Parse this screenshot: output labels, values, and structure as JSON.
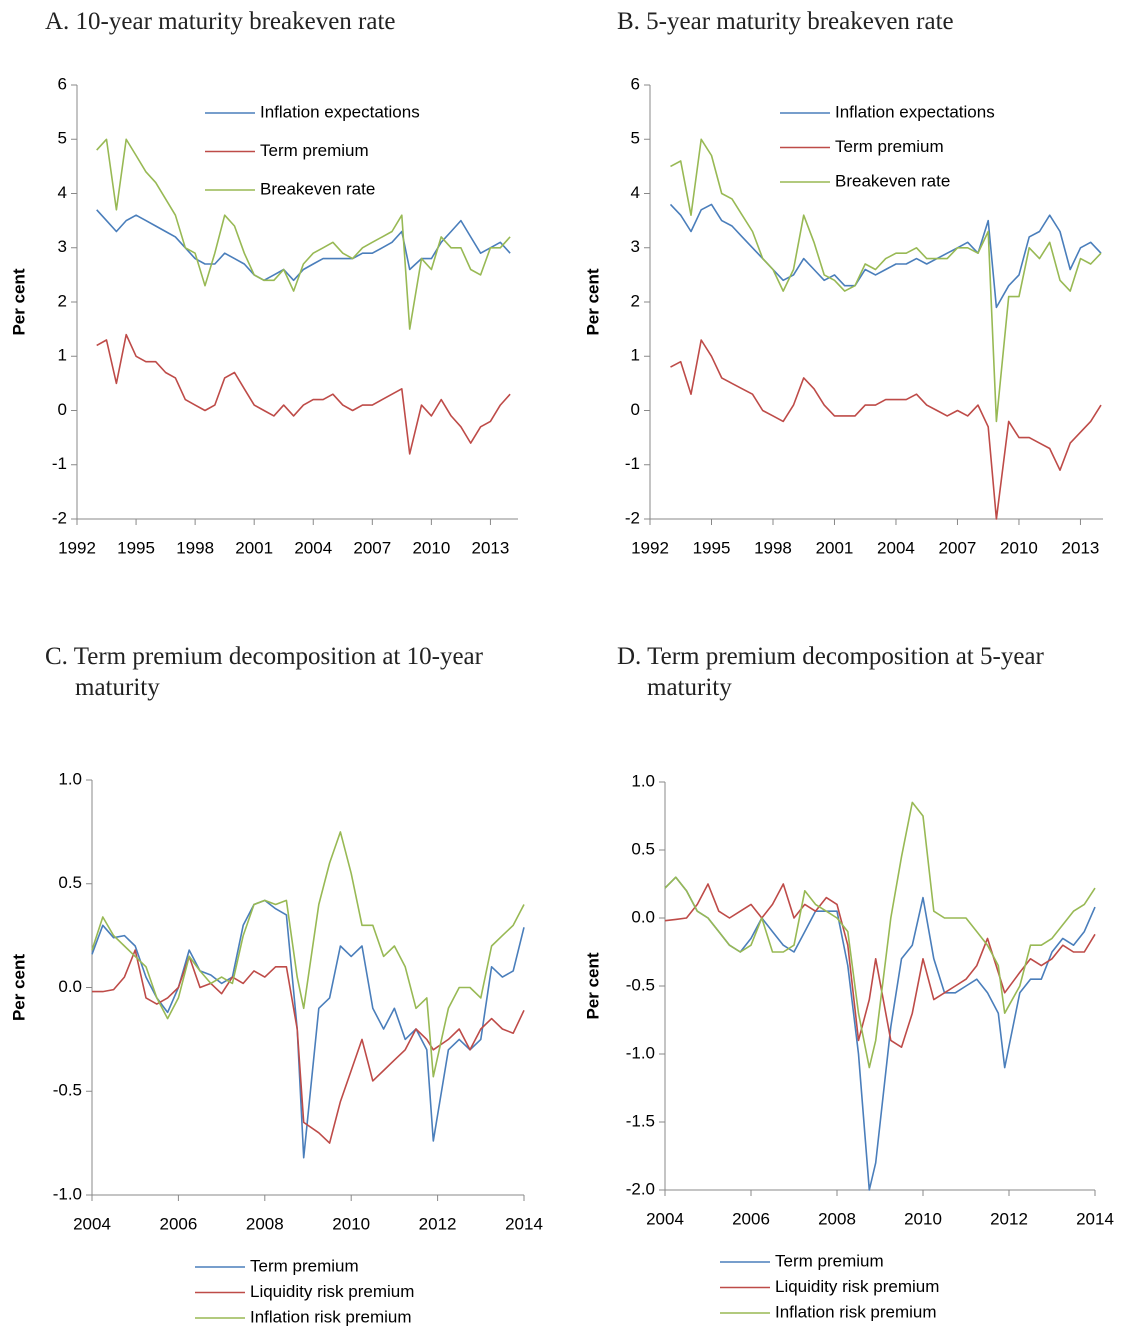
{
  "chart_data": [
    {
      "type": "line",
      "title": "A.  10-year maturity breakeven rate",
      "ylabel": "Per cent",
      "legend": "upper center",
      "x": [
        1993,
        1993.5,
        1994,
        1994.5,
        1995,
        1995.5,
        1996,
        1996.5,
        1997,
        1997.5,
        1998,
        1998.5,
        1999,
        1999.5,
        2000,
        2000.5,
        2001,
        2001.5,
        2002,
        2002.5,
        2003,
        2003.5,
        2004,
        2004.5,
        2005,
        2005.5,
        2006,
        2006.5,
        2007,
        2007.5,
        2008,
        2008.5,
        2008.9,
        2009.5,
        2010,
        2010.5,
        2011,
        2011.5,
        2012,
        2012.5,
        2013,
        2013.5,
        2014
      ],
      "xlim": [
        1992,
        2014.4
      ],
      "xticks": [
        1992,
        1995,
        1998,
        2001,
        2004,
        2007,
        2010,
        2013
      ],
      "ylim": [
        -2,
        6
      ],
      "yticks": [
        -2,
        -1,
        0,
        1,
        2,
        3,
        4,
        5,
        6
      ],
      "series": [
        {
          "name": "Inflation expectations",
          "color": "#4a7ebb",
          "values": [
            3.7,
            3.5,
            3.3,
            3.5,
            3.6,
            3.5,
            3.4,
            3.3,
            3.2,
            3.0,
            2.8,
            2.7,
            2.7,
            2.9,
            2.8,
            2.7,
            2.5,
            2.4,
            2.5,
            2.6,
            2.4,
            2.6,
            2.7,
            2.8,
            2.8,
            2.8,
            2.8,
            2.9,
            2.9,
            3.0,
            3.1,
            3.3,
            2.6,
            2.8,
            2.8,
            3.1,
            3.3,
            3.5,
            3.2,
            2.9,
            3.0,
            3.1,
            2.9
          ]
        },
        {
          "name": "Term premium",
          "color": "#be4b48",
          "values": [
            1.2,
            1.3,
            0.5,
            1.4,
            1.0,
            0.9,
            0.9,
            0.7,
            0.6,
            0.2,
            0.1,
            0.0,
            0.1,
            0.6,
            0.7,
            0.4,
            0.1,
            0.0,
            -0.1,
            0.1,
            -0.1,
            0.1,
            0.2,
            0.2,
            0.3,
            0.1,
            0.0,
            0.1,
            0.1,
            0.2,
            0.3,
            0.4,
            -0.8,
            0.1,
            -0.1,
            0.2,
            -0.1,
            -0.3,
            -0.6,
            -0.3,
            -0.2,
            0.1,
            0.3
          ]
        },
        {
          "name": "Breakeven rate",
          "color": "#98b954",
          "values": [
            4.8,
            5.0,
            3.7,
            5.0,
            4.7,
            4.4,
            4.2,
            3.9,
            3.6,
            3.0,
            2.9,
            2.3,
            2.9,
            3.6,
            3.4,
            2.9,
            2.5,
            2.4,
            2.4,
            2.6,
            2.2,
            2.7,
            2.9,
            3.0,
            3.1,
            2.9,
            2.8,
            3.0,
            3.1,
            3.2,
            3.3,
            3.6,
            1.5,
            2.8,
            2.6,
            3.2,
            3.0,
            3.0,
            2.6,
            2.5,
            3.0,
            3.0,
            3.2
          ]
        }
      ]
    },
    {
      "type": "line",
      "title": "B.  5-year maturity breakeven rate",
      "ylabel": "Per cent",
      "legend": "upper center",
      "x": [
        1993,
        1993.5,
        1994,
        1994.5,
        1995,
        1995.5,
        1996,
        1996.5,
        1997,
        1997.5,
        1998,
        1998.5,
        1999,
        1999.5,
        2000,
        2000.5,
        2001,
        2001.5,
        2002,
        2002.5,
        2003,
        2003.5,
        2004,
        2004.5,
        2005,
        2005.5,
        2006,
        2006.5,
        2007,
        2007.5,
        2008,
        2008.5,
        2008.9,
        2009.5,
        2010,
        2010.5,
        2011,
        2011.5,
        2012,
        2012.5,
        2013,
        2013.5,
        2014
      ],
      "xlim": [
        1992,
        2014.1
      ],
      "xticks": [
        1992,
        1995,
        1998,
        2001,
        2004,
        2007,
        2010,
        2013
      ],
      "ylim": [
        -2,
        6
      ],
      "yticks": [
        -2,
        -1,
        0,
        1,
        2,
        3,
        4,
        5,
        6
      ],
      "series": [
        {
          "name": "Inflation expectations",
          "color": "#4a7ebb",
          "values": [
            3.8,
            3.6,
            3.3,
            3.7,
            3.8,
            3.5,
            3.4,
            3.2,
            3.0,
            2.8,
            2.6,
            2.4,
            2.5,
            2.8,
            2.6,
            2.4,
            2.5,
            2.3,
            2.3,
            2.6,
            2.5,
            2.6,
            2.7,
            2.7,
            2.8,
            2.7,
            2.8,
            2.9,
            3.0,
            3.1,
            2.9,
            3.5,
            1.9,
            2.3,
            2.5,
            3.2,
            3.3,
            3.6,
            3.3,
            2.6,
            3.0,
            3.1,
            2.9
          ]
        },
        {
          "name": "Term premium",
          "color": "#be4b48",
          "values": [
            0.8,
            0.9,
            0.3,
            1.3,
            1.0,
            0.6,
            0.5,
            0.4,
            0.3,
            0.0,
            -0.1,
            -0.2,
            0.1,
            0.6,
            0.4,
            0.1,
            -0.1,
            -0.1,
            -0.1,
            0.1,
            0.1,
            0.2,
            0.2,
            0.2,
            0.3,
            0.1,
            0.0,
            -0.1,
            0.0,
            -0.1,
            0.1,
            -0.3,
            -2.0,
            -0.2,
            -0.5,
            -0.5,
            -0.6,
            -0.7,
            -1.1,
            -0.6,
            -0.4,
            -0.2,
            0.1
          ]
        },
        {
          "name": "Breakeven rate",
          "color": "#98b954",
          "values": [
            4.5,
            4.6,
            3.6,
            5.0,
            4.7,
            4.0,
            3.9,
            3.6,
            3.3,
            2.8,
            2.6,
            2.2,
            2.6,
            3.6,
            3.1,
            2.5,
            2.4,
            2.2,
            2.3,
            2.7,
            2.6,
            2.8,
            2.9,
            2.9,
            3.0,
            2.8,
            2.8,
            2.8,
            3.0,
            3.0,
            2.9,
            3.3,
            -0.2,
            2.1,
            2.1,
            3.0,
            2.8,
            3.1,
            2.4,
            2.2,
            2.8,
            2.7,
            2.9
          ]
        }
      ]
    },
    {
      "type": "line",
      "title": "C.  Term premium decomposition at 10-year maturity",
      "ylabel": "Per cent",
      "legend": "below",
      "x": [
        2004,
        2004.25,
        2004.5,
        2004.75,
        2005,
        2005.25,
        2005.5,
        2005.75,
        2006,
        2006.25,
        2006.5,
        2006.75,
        2007,
        2007.25,
        2007.5,
        2007.75,
        2008,
        2008.25,
        2008.5,
        2008.75,
        2008.9,
        2009.25,
        2009.5,
        2009.75,
        2010,
        2010.25,
        2010.5,
        2010.75,
        2011,
        2011.25,
        2011.5,
        2011.75,
        2011.9,
        2012.25,
        2012.5,
        2012.75,
        2013,
        2013.25,
        2013.5,
        2013.75,
        2014
      ],
      "xlim": [
        2004,
        2014
      ],
      "xticks": [
        2004,
        2006,
        2008,
        2010,
        2012,
        2014
      ],
      "ylim": [
        -1,
        1
      ],
      "yticks": [
        {
          "value": -1,
          "label": "-1.0"
        },
        {
          "value": -0.5,
          "label": "-0.5"
        },
        {
          "value": 0,
          "label": "0.0"
        },
        {
          "value": 0.5,
          "label": "0.5"
        },
        {
          "value": 1,
          "label": "1.0"
        }
      ],
      "series": [
        {
          "name": "Term premium",
          "color": "#4a7ebb",
          "values": [
            0.16,
            0.3,
            0.24,
            0.25,
            0.2,
            0.05,
            -0.05,
            -0.12,
            0.0,
            0.18,
            0.08,
            0.06,
            0.02,
            0.05,
            0.3,
            0.4,
            0.42,
            0.38,
            0.35,
            -0.2,
            -0.82,
            -0.1,
            -0.05,
            0.2,
            0.15,
            0.2,
            -0.1,
            -0.2,
            -0.1,
            -0.25,
            -0.2,
            -0.3,
            -0.74,
            -0.3,
            -0.25,
            -0.3,
            -0.25,
            0.1,
            0.05,
            0.08,
            0.29
          ]
        },
        {
          "name": "Liquidity risk premium",
          "color": "#be4b48",
          "values": [
            -0.02,
            -0.02,
            -0.01,
            0.05,
            0.18,
            -0.05,
            -0.08,
            -0.05,
            0.0,
            0.15,
            0.0,
            0.02,
            -0.03,
            0.05,
            0.02,
            0.08,
            0.05,
            0.1,
            0.1,
            -0.2,
            -0.65,
            -0.7,
            -0.75,
            -0.55,
            -0.4,
            -0.25,
            -0.45,
            -0.4,
            -0.35,
            -0.3,
            -0.2,
            -0.25,
            -0.3,
            -0.25,
            -0.2,
            -0.3,
            -0.2,
            -0.15,
            -0.2,
            -0.22,
            -0.11
          ]
        },
        {
          "name": "Inflation risk premium",
          "color": "#98b954",
          "values": [
            0.18,
            0.34,
            0.25,
            0.2,
            0.15,
            0.1,
            -0.05,
            -0.15,
            -0.05,
            0.15,
            0.08,
            0.02,
            0.05,
            0.02,
            0.25,
            0.4,
            0.42,
            0.4,
            0.42,
            0.05,
            -0.1,
            0.4,
            0.6,
            0.75,
            0.55,
            0.3,
            0.3,
            0.15,
            0.2,
            0.1,
            -0.1,
            -0.05,
            -0.43,
            -0.1,
            0.0,
            0.0,
            -0.05,
            0.2,
            0.25,
            0.3,
            0.4
          ]
        }
      ]
    },
    {
      "type": "line",
      "title": "D.  Term premium decomposition at 5-year maturity",
      "ylabel": "Per cent",
      "legend": "below",
      "x": [
        2004,
        2004.25,
        2004.5,
        2004.75,
        2005,
        2005.25,
        2005.5,
        2005.75,
        2006,
        2006.25,
        2006.5,
        2006.75,
        2007,
        2007.25,
        2007.5,
        2007.75,
        2008,
        2008.25,
        2008.5,
        2008.75,
        2008.9,
        2009.25,
        2009.5,
        2009.75,
        2010,
        2010.25,
        2010.5,
        2010.75,
        2011,
        2011.25,
        2011.5,
        2011.75,
        2011.9,
        2012.25,
        2012.5,
        2012.75,
        2013,
        2013.25,
        2013.5,
        2013.75,
        2014
      ],
      "xlim": [
        2004,
        2014
      ],
      "xticks": [
        2004,
        2006,
        2008,
        2010,
        2012,
        2014
      ],
      "ylim": [
        -2,
        1
      ],
      "yticks": [
        {
          "value": -2,
          "label": "-2.0"
        },
        {
          "value": -1.5,
          "label": "-1.5"
        },
        {
          "value": -1,
          "label": "-1.0"
        },
        {
          "value": -0.5,
          "label": "-0.5"
        },
        {
          "value": 0,
          "label": "0.0"
        },
        {
          "value": 0.5,
          "label": "0.5"
        },
        {
          "value": 1,
          "label": "1.0"
        }
      ],
      "series": [
        {
          "name": "Term premium",
          "color": "#4a7ebb",
          "values": [
            0.22,
            0.3,
            0.2,
            0.05,
            0.0,
            -0.1,
            -0.2,
            -0.25,
            -0.15,
            0.0,
            -0.1,
            -0.2,
            -0.25,
            -0.1,
            0.05,
            0.05,
            0.05,
            -0.35,
            -1.0,
            -2.0,
            -1.8,
            -0.8,
            -0.3,
            -0.2,
            0.15,
            -0.3,
            -0.55,
            -0.55,
            -0.5,
            -0.45,
            -0.55,
            -0.7,
            -1.1,
            -0.55,
            -0.45,
            -0.45,
            -0.25,
            -0.15,
            -0.2,
            -0.1,
            0.08
          ]
        },
        {
          "name": "Liquidity risk premium",
          "color": "#be4b48",
          "values": [
            -0.02,
            -0.01,
            0.0,
            0.1,
            0.25,
            0.05,
            0.0,
            0.05,
            0.1,
            0.0,
            0.1,
            0.25,
            0.0,
            0.1,
            0.05,
            0.15,
            0.1,
            -0.2,
            -0.9,
            -0.6,
            -0.3,
            -0.9,
            -0.95,
            -0.7,
            -0.3,
            -0.6,
            -0.55,
            -0.5,
            -0.45,
            -0.35,
            -0.15,
            -0.4,
            -0.55,
            -0.4,
            -0.3,
            -0.35,
            -0.3,
            -0.2,
            -0.25,
            -0.25,
            -0.12
          ]
        },
        {
          "name": "Inflation risk premium",
          "color": "#98b954",
          "values": [
            0.22,
            0.3,
            0.2,
            0.05,
            0.0,
            -0.1,
            -0.2,
            -0.25,
            -0.2,
            0.0,
            -0.25,
            -0.25,
            -0.2,
            0.2,
            0.1,
            0.05,
            0.0,
            -0.1,
            -0.7,
            -1.1,
            -0.9,
            0.0,
            0.45,
            0.85,
            0.75,
            0.05,
            0.0,
            0.0,
            0.0,
            -0.1,
            -0.2,
            -0.35,
            -0.7,
            -0.5,
            -0.2,
            -0.2,
            -0.15,
            -0.05,
            0.05,
            0.1,
            0.22
          ]
        }
      ]
    }
  ]
}
